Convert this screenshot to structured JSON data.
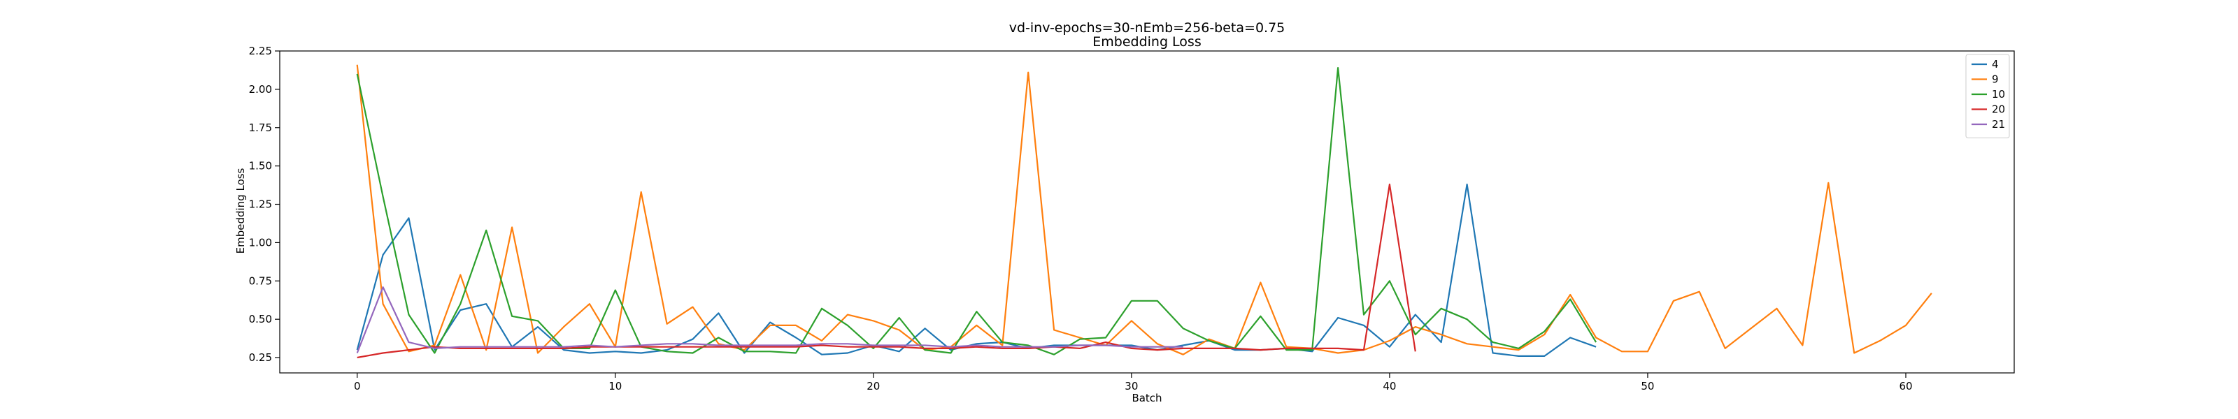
{
  "chart_data": {
    "type": "line",
    "title": "vd-inv-epochs=30-nEmb=256-beta=0.75",
    "subtitle": "Embedding Loss",
    "xlabel": "Batch",
    "ylabel": "Embedding Loss",
    "xlim": [
      -3,
      64.2
    ],
    "ylim": [
      0.15,
      2.25
    ],
    "xticks": [
      0,
      10,
      20,
      30,
      40,
      50,
      60
    ],
    "yticks": [
      0.25,
      0.5,
      0.75,
      1.0,
      1.25,
      1.5,
      1.75,
      2.0,
      2.25
    ],
    "ytick_labels": [
      "0.25",
      "0.50",
      "0.75",
      "1.00",
      "1.25",
      "1.50",
      "1.75",
      "2.00",
      "2.25"
    ],
    "grid": false,
    "legend_position": "top-right",
    "series": [
      {
        "name": "4",
        "color": "#1f77b4",
        "values": [
          0.3,
          0.92,
          1.16,
          0.3,
          0.56,
          0.6,
          0.32,
          0.45,
          0.3,
          0.28,
          0.29,
          0.28,
          0.3,
          0.37,
          0.54,
          0.28,
          0.48,
          0.38,
          0.27,
          0.28,
          0.33,
          0.29,
          0.44,
          0.3,
          0.34,
          0.35,
          0.31,
          0.33,
          0.33,
          0.33,
          0.33,
          0.3,
          0.33,
          0.36,
          0.3,
          0.3,
          0.31,
          0.29,
          0.51,
          0.46,
          0.32,
          0.53,
          0.35,
          1.38,
          0.28,
          0.26,
          0.26,
          0.38,
          0.32
        ]
      },
      {
        "name": "9",
        "color": "#ff7f0e",
        "values": [
          2.16,
          0.6,
          0.29,
          0.33,
          0.79,
          0.3,
          1.1,
          0.28,
          0.45,
          0.6,
          0.32,
          1.33,
          0.47,
          0.58,
          0.34,
          0.3,
          0.46,
          0.46,
          0.36,
          0.53,
          0.49,
          0.43,
          0.3,
          0.32,
          0.46,
          0.33,
          2.11,
          0.43,
          0.38,
          0.33,
          0.49,
          0.34,
          0.27,
          0.37,
          0.31,
          0.74,
          0.32,
          0.31,
          0.28,
          0.3,
          0.36,
          0.45,
          0.4,
          0.34,
          0.32,
          0.3,
          0.4,
          0.66,
          0.38,
          0.29,
          0.29,
          0.62,
          0.68,
          0.31,
          0.44,
          0.57,
          0.33,
          1.39,
          0.28,
          0.36,
          0.46,
          0.67
        ]
      },
      {
        "name": "10",
        "color": "#2ca02c",
        "values": [
          2.1,
          1.3,
          0.53,
          0.28,
          0.6,
          1.08,
          0.52,
          0.49,
          0.31,
          0.31,
          0.69,
          0.32,
          0.29,
          0.28,
          0.38,
          0.29,
          0.29,
          0.28,
          0.57,
          0.46,
          0.31,
          0.51,
          0.3,
          0.28,
          0.55,
          0.35,
          0.33,
          0.27,
          0.37,
          0.38,
          0.62,
          0.62,
          0.44,
          0.36,
          0.31,
          0.52,
          0.3,
          0.3,
          2.14,
          0.53,
          0.75,
          0.4,
          0.57,
          0.5,
          0.35,
          0.31,
          0.42,
          0.63,
          0.35
        ]
      },
      {
        "name": "20",
        "color": "#d62728",
        "values": [
          0.25,
          0.28,
          0.3,
          0.32,
          0.31,
          0.31,
          0.31,
          0.31,
          0.31,
          0.32,
          0.32,
          0.32,
          0.32,
          0.32,
          0.32,
          0.32,
          0.32,
          0.32,
          0.33,
          0.32,
          0.32,
          0.32,
          0.31,
          0.31,
          0.32,
          0.31,
          0.31,
          0.32,
          0.31,
          0.35,
          0.31,
          0.3,
          0.31,
          0.31,
          0.31,
          0.3,
          0.31,
          0.31,
          0.31,
          0.3,
          1.38,
          0.29
        ]
      },
      {
        "name": "21",
        "color": "#9467bd",
        "values": [
          0.28,
          0.71,
          0.35,
          0.31,
          0.32,
          0.32,
          0.32,
          0.32,
          0.32,
          0.33,
          0.32,
          0.33,
          0.34,
          0.34,
          0.33,
          0.33,
          0.33,
          0.33,
          0.34,
          0.34,
          0.33,
          0.33,
          0.33,
          0.32,
          0.33,
          0.32,
          0.32,
          0.32,
          0.33,
          0.33,
          0.32,
          0.32,
          0.32
        ]
      }
    ]
  }
}
